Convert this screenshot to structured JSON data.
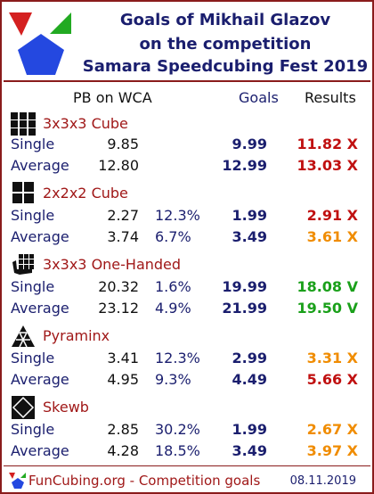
{
  "title": {
    "line1": "Goals of Mikhail Glazov",
    "line2": "on the competition",
    "line3": "Samara Speedcubing Fest 2019"
  },
  "columns": {
    "pb": "PB on WCA",
    "goals": "Goals",
    "results": "Results"
  },
  "colors": {
    "frame": "#8a1c1c",
    "navy": "#1a1e6e",
    "red": "#c01010",
    "dark_red": "#a01818",
    "orange": "#f08c00",
    "green": "#1aa01a"
  },
  "events": [
    {
      "icon": "cube-3x3-icon",
      "name": "3x3x3 Cube",
      "rows": [
        {
          "label": "Single",
          "pb": "9.85",
          "pct": "",
          "goal": "9.99",
          "result": "11.82 X",
          "result_color": "#c01010"
        },
        {
          "label": "Average",
          "pb": "12.80",
          "pct": "",
          "goal": "12.99",
          "result": "13.03 X",
          "result_color": "#c01010"
        }
      ]
    },
    {
      "icon": "cube-2x2-icon",
      "name": "2x2x2 Cube",
      "rows": [
        {
          "label": "Single",
          "pb": "2.27",
          "pct": "12.3%",
          "goal": "1.99",
          "result": "2.91 X",
          "result_color": "#c01010"
        },
        {
          "label": "Average",
          "pb": "3.74",
          "pct": "6.7%",
          "goal": "3.49",
          "result": "3.61 X",
          "result_color": "#f08c00"
        }
      ]
    },
    {
      "icon": "one-handed-icon",
      "name": "3x3x3 One-Handed",
      "rows": [
        {
          "label": "Single",
          "pb": "20.32",
          "pct": "1.6%",
          "goal": "19.99",
          "result": "18.08 V",
          "result_color": "#1aa01a"
        },
        {
          "label": "Average",
          "pb": "23.12",
          "pct": "4.9%",
          "goal": "21.99",
          "result": "19.50 V",
          "result_color": "#1aa01a"
        }
      ]
    },
    {
      "icon": "pyraminx-icon",
      "name": "Pyraminx",
      "rows": [
        {
          "label": "Single",
          "pb": "3.41",
          "pct": "12.3%",
          "goal": "2.99",
          "result": "3.31 X",
          "result_color": "#f08c00"
        },
        {
          "label": "Average",
          "pb": "4.95",
          "pct": "9.3%",
          "goal": "4.49",
          "result": "5.66 X",
          "result_color": "#c01010"
        }
      ]
    },
    {
      "icon": "skewb-icon",
      "name": "Skewb",
      "rows": [
        {
          "label": "Single",
          "pb": "2.85",
          "pct": "30.2%",
          "goal": "1.99",
          "result": "2.67 X",
          "result_color": "#f08c00"
        },
        {
          "label": "Average",
          "pb": "4.28",
          "pct": "18.5%",
          "goal": "3.49",
          "result": "3.97 X",
          "result_color": "#f08c00"
        }
      ]
    }
  ],
  "footer": {
    "text": "FunCubing.org - Competition goals",
    "date": "08.11.2019"
  }
}
